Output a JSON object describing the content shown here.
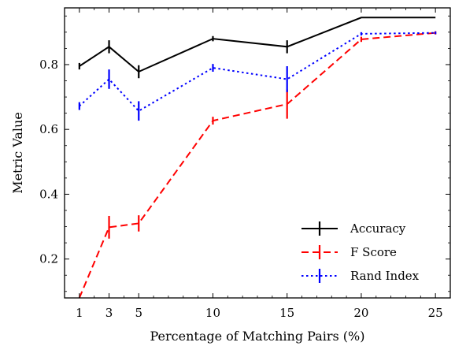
{
  "chart_data": {
    "type": "line",
    "xlabel": "Percentage of Matching Pairs (%)",
    "ylabel": "Metric Value",
    "x": [
      1,
      3,
      5,
      10,
      15,
      20,
      25
    ],
    "xlim": [
      0,
      26
    ],
    "ylim": [
      0.08,
      0.975
    ],
    "xticks": [
      1,
      3,
      5,
      10,
      15,
      20,
      25
    ],
    "yticks": [
      0.2,
      0.4,
      0.6,
      0.8
    ],
    "ytick_labels": [
      "0.2",
      "0.4",
      "0.6",
      "0.8"
    ],
    "grid": false,
    "legend_position": "bottom-right",
    "series": [
      {
        "name": "Accuracy",
        "color": "#000000",
        "style": "solid",
        "values": [
          0.795,
          0.855,
          0.778,
          0.88,
          0.855,
          0.945,
          0.945
        ],
        "errors": [
          0.01,
          0.02,
          0.02,
          0.008,
          0.02,
          0.0,
          0.0
        ]
      },
      {
        "name": "F Score",
        "color": "#ff0000",
        "style": "dashed",
        "values": [
          0.08,
          0.298,
          0.31,
          0.627,
          0.678,
          0.878,
          0.898
        ],
        "errors": [
          0.0,
          0.035,
          0.025,
          0.012,
          0.045,
          0.008,
          0.005
        ]
      },
      {
        "name": "Rand Index",
        "color": "#0000ff",
        "style": "dotted",
        "values": [
          0.672,
          0.755,
          0.657,
          0.79,
          0.755,
          0.895,
          0.898
        ],
        "errors": [
          0.012,
          0.03,
          0.03,
          0.012,
          0.04,
          0.005,
          0.004
        ]
      }
    ]
  }
}
